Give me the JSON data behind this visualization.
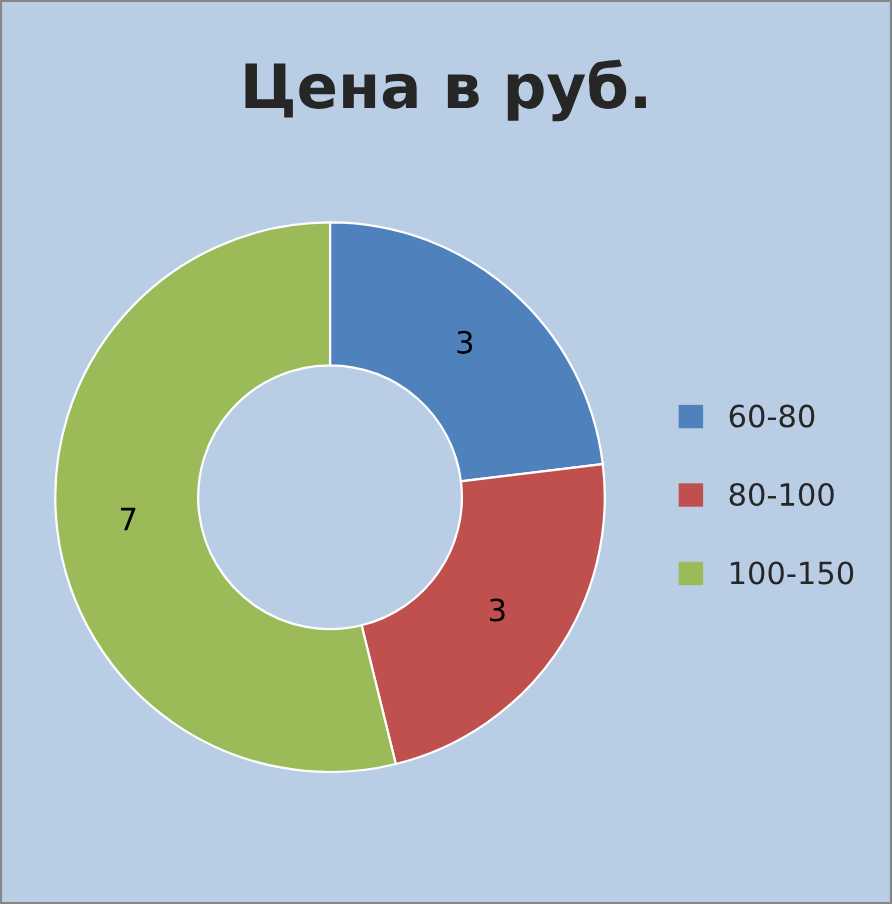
{
  "chart_data": {
    "type": "donut",
    "title": "Цена в руб.",
    "categories": [
      "60-80",
      "80-100",
      "100-150"
    ],
    "values": [
      3,
      3,
      7
    ],
    "colors": [
      "#4f81bd",
      "#c0504d",
      "#9bbb59"
    ],
    "data_labels": true,
    "legend": "right"
  }
}
